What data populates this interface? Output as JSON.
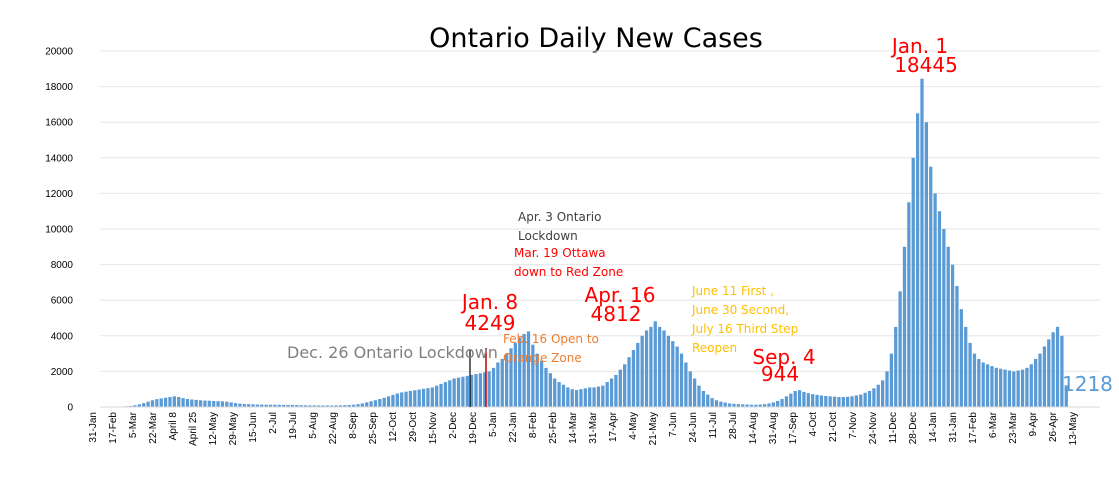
{
  "chart_data": {
    "type": "bar",
    "title": "Ontario Daily New Cases",
    "xlabel": "",
    "ylabel": "",
    "ylim": [
      0,
      20000
    ],
    "yticks": [
      0,
      2000,
      4000,
      6000,
      8000,
      10000,
      12000,
      14000,
      16000,
      18000,
      20000
    ],
    "xtick_labels": [
      "31-Jan",
      "17-Feb",
      "5-Mar",
      "22-Mar",
      "April 8",
      "April 25",
      "12-May",
      "29-May",
      "15-Jun",
      "2-Jul",
      "19-Jul",
      "5-Aug",
      "22-Aug",
      "8-Sep",
      "25-Sep",
      "12-Oct",
      "29-Oct",
      "15-Nov",
      "2-Dec",
      "19-Dec",
      "5-Jan",
      "22-Jan",
      "8-Feb",
      "25-Feb",
      "14-Mar",
      "31-Mar",
      "17-Apr",
      "4-May",
      "21-May",
      "7-Jun",
      "24-Jun",
      "11-Jul",
      "28-Jul",
      "14-Aug",
      "31-Aug",
      "17-Sep",
      "4-Oct",
      "21-Oct",
      "7-Nov",
      "24-Nov",
      "11-Dec",
      "28-Dec",
      "14-Jan",
      "31-Jan",
      "17-Feb",
      "6-Mar",
      "23-Mar",
      "9-Apr",
      "26-Apr",
      "13-May"
    ],
    "series_color": "#5b9bd5",
    "series": [
      {
        "values": [
          0,
          0,
          1,
          2,
          5,
          10,
          20,
          40,
          60,
          100,
          150,
          220,
          300,
          380,
          440,
          480,
          520,
          560,
          600,
          560,
          500,
          450,
          420,
          400,
          380,
          360,
          350,
          340,
          330,
          320,
          300,
          260,
          220,
          190,
          170,
          160,
          150,
          140,
          135,
          130,
          130,
          130,
          125,
          120,
          118,
          115,
          110,
          100,
          95,
          90,
          90,
          88,
          85,
          85,
          85,
          90,
          95,
          100,
          110,
          130,
          160,
          200,
          260,
          320,
          380,
          450,
          520,
          600,
          680,
          760,
          820,
          860,
          900,
          940,
          980,
          1020,
          1060,
          1100,
          1200,
          1300,
          1400,
          1500,
          1600,
          1650,
          1700,
          1750,
          1800,
          1850,
          1900,
          1950,
          2000,
          2200,
          2500,
          2700,
          3000,
          3300,
          3600,
          3900,
          4100,
          4249,
          3500,
          3000,
          2600,
          2200,
          1900,
          1600,
          1400,
          1250,
          1100,
          1000,
          950,
          1000,
          1050,
          1100,
          1100,
          1150,
          1200,
          1400,
          1600,
          1800,
          2100,
          2400,
          2800,
          3200,
          3600,
          4000,
          4300,
          4500,
          4812,
          4500,
          4300,
          4000,
          3700,
          3400,
          3000,
          2500,
          2000,
          1600,
          1200,
          900,
          700,
          500,
          380,
          300,
          250,
          200,
          180,
          160,
          150,
          140,
          130,
          130,
          140,
          160,
          200,
          260,
          340,
          450,
          600,
          750,
          900,
          944,
          850,
          780,
          720,
          680,
          650,
          620,
          600,
          580,
          560,
          560,
          570,
          600,
          650,
          700,
          800,
          900,
          1050,
          1250,
          1500,
          2000,
          3000,
          4500,
          6500,
          9000,
          11500,
          14000,
          16500,
          18445,
          16000,
          13500,
          12000,
          11000,
          10000,
          9000,
          8000,
          6800,
          5500,
          4500,
          3600,
          3000,
          2700,
          2500,
          2400,
          2300,
          2200,
          2150,
          2100,
          2050,
          2000,
          2050,
          2100,
          2200,
          2400,
          2700,
          3000,
          3400,
          3800,
          4200,
          4500,
          4000,
          1218
        ],
        "annotated_points": [
          {
            "label": "Jan. 8",
            "value": 4249
          },
          {
            "label": "Apr. 16",
            "value": 4812
          },
          {
            "label": "Sep. 4",
            "value": 944
          },
          {
            "label": "Jan. 1",
            "value": 18445
          }
        ]
      }
    ],
    "annotations": {
      "dec26": "Dec. 26 Ontario Lockdown",
      "jan8_date": "Jan. 8",
      "jan8_value": "4249",
      "feb16_line1": "Feb. 16 Open to",
      "feb16_line2": "Orange Zone",
      "apr3_line1": "Apr. 3 Ontario",
      "apr3_line2": "Lockdown",
      "mar19_line1": "Mar. 19 Ottawa",
      "mar19_line2": "down to Red Zone",
      "apr16_date": "Apr. 16",
      "apr16_value": "4812",
      "june_line1": "June 11 First ,",
      "june_line2": "June 30 Second,",
      "june_line3": "July 16 Third Step",
      "june_line4": "Reopen",
      "sep4_date": "Sep. 4",
      "sep4_value": "944",
      "jan1_date": "Jan. 1",
      "jan1_value": "18445",
      "last_value": "1218"
    },
    "annotation_colors": {
      "red": "#ff0000",
      "gray": "#7f7f7f",
      "dark": "#404040",
      "orange": "#ed7d31",
      "gold": "#ffc000",
      "blue": "#5b9bd5"
    }
  }
}
